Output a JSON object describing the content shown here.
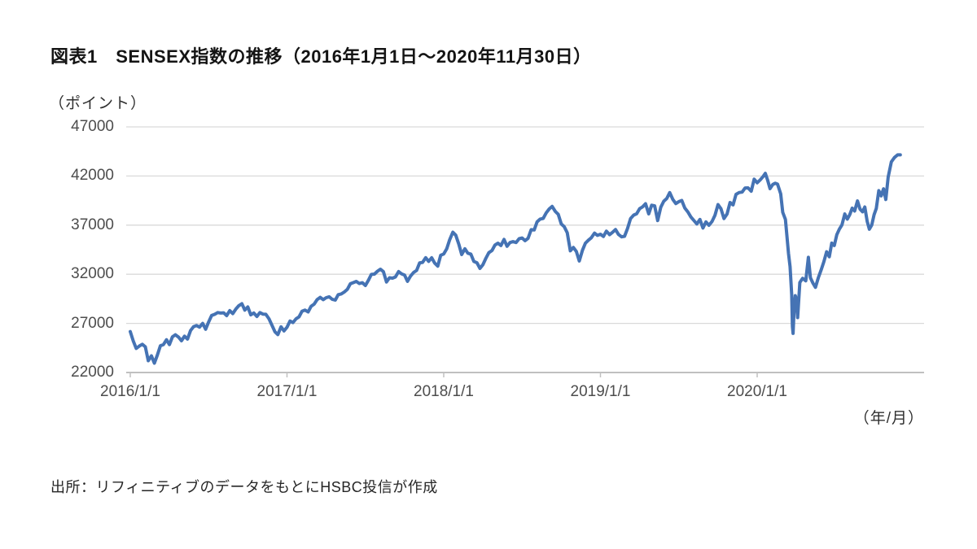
{
  "figure": {
    "title": "図表1　SENSEX指数の推移（2016年1月1日～2020年11月30日）",
    "y_unit_label": "（ポイント）",
    "x_unit_label": "（年/月）",
    "source": "出所：リフィニティブのデータをもとにHSBC投信が作成"
  },
  "colors": {
    "line": "#4573b4",
    "gridline": "#d9d9d9",
    "axis": "#c0c0c0",
    "tick_text": "#4d4d4d",
    "title_text": "#141414"
  },
  "chart_data": {
    "type": "line",
    "title": "SENSEX指数の推移（2016年1月1日～2020年11月30日）",
    "xlabel": "年/月",
    "ylabel": "ポイント",
    "ylim": [
      22000,
      47000
    ],
    "xlim_years": [
      2016.0,
      2020.915
    ],
    "grid": "horizontal",
    "legend": "none",
    "ytick_values": [
      47000,
      42000,
      37000,
      32000,
      27000,
      22000
    ],
    "ytick_labels": [
      "47000",
      "42000",
      "37000",
      "32000",
      "27000",
      "22000"
    ],
    "xtick_years": [
      2016,
      2017,
      2018,
      2019,
      2020
    ],
    "xtick_labels": [
      "2016/1/1",
      "2017/1/1",
      "2018/1/1",
      "2019/1/1",
      "2020/1/1"
    ],
    "series": [
      {
        "name": "SENSEX",
        "points": [
          [
            2016.0,
            26160
          ],
          [
            2016.019,
            25200
          ],
          [
            2016.038,
            24450
          ],
          [
            2016.058,
            24700
          ],
          [
            2016.077,
            24870
          ],
          [
            2016.096,
            24620
          ],
          [
            2016.115,
            23200
          ],
          [
            2016.135,
            23700
          ],
          [
            2016.154,
            22950
          ],
          [
            2016.173,
            23780
          ],
          [
            2016.192,
            24720
          ],
          [
            2016.212,
            24850
          ],
          [
            2016.231,
            25340
          ],
          [
            2016.25,
            24840
          ],
          [
            2016.269,
            25630
          ],
          [
            2016.288,
            25840
          ],
          [
            2016.308,
            25600
          ],
          [
            2016.327,
            25230
          ],
          [
            2016.346,
            25700
          ],
          [
            2016.365,
            25400
          ],
          [
            2016.385,
            26280
          ],
          [
            2016.404,
            26670
          ],
          [
            2016.423,
            26780
          ],
          [
            2016.442,
            26620
          ],
          [
            2016.462,
            27000
          ],
          [
            2016.481,
            26400
          ],
          [
            2016.5,
            27150
          ],
          [
            2016.519,
            27800
          ],
          [
            2016.538,
            27920
          ],
          [
            2016.558,
            28100
          ],
          [
            2016.577,
            28050
          ],
          [
            2016.596,
            28080
          ],
          [
            2016.615,
            27790
          ],
          [
            2016.635,
            28300
          ],
          [
            2016.654,
            27990
          ],
          [
            2016.673,
            28450
          ],
          [
            2016.692,
            28800
          ],
          [
            2016.712,
            29000
          ],
          [
            2016.731,
            28350
          ],
          [
            2016.75,
            28670
          ],
          [
            2016.769,
            27870
          ],
          [
            2016.788,
            28060
          ],
          [
            2016.808,
            27700
          ],
          [
            2016.827,
            28100
          ],
          [
            2016.846,
            27940
          ],
          [
            2016.865,
            27930
          ],
          [
            2016.885,
            27460
          ],
          [
            2016.904,
            26820
          ],
          [
            2016.923,
            26150
          ],
          [
            2016.942,
            25860
          ],
          [
            2016.962,
            26650
          ],
          [
            2016.981,
            26230
          ],
          [
            2017.0,
            26600
          ],
          [
            2017.019,
            27240
          ],
          [
            2017.038,
            27080
          ],
          [
            2017.058,
            27470
          ],
          [
            2017.077,
            27660
          ],
          [
            2017.096,
            28240
          ],
          [
            2017.115,
            28350
          ],
          [
            2017.135,
            28170
          ],
          [
            2017.154,
            28740
          ],
          [
            2017.173,
            28950
          ],
          [
            2017.192,
            29420
          ],
          [
            2017.212,
            29650
          ],
          [
            2017.231,
            29420
          ],
          [
            2017.25,
            29620
          ],
          [
            2017.269,
            29710
          ],
          [
            2017.288,
            29460
          ],
          [
            2017.308,
            29370
          ],
          [
            2017.327,
            29920
          ],
          [
            2017.346,
            30000
          ],
          [
            2017.365,
            30190
          ],
          [
            2017.385,
            30460
          ],
          [
            2017.404,
            31030
          ],
          [
            2017.423,
            31150
          ],
          [
            2017.442,
            31270
          ],
          [
            2017.462,
            31060
          ],
          [
            2017.481,
            31140
          ],
          [
            2017.5,
            30860
          ],
          [
            2017.519,
            31370
          ],
          [
            2017.538,
            31980
          ],
          [
            2017.558,
            32020
          ],
          [
            2017.577,
            32310
          ],
          [
            2017.596,
            32510
          ],
          [
            2017.615,
            32270
          ],
          [
            2017.635,
            31210
          ],
          [
            2017.654,
            31640
          ],
          [
            2017.673,
            31600
          ],
          [
            2017.692,
            31730
          ],
          [
            2017.712,
            32270
          ],
          [
            2017.731,
            32040
          ],
          [
            2017.75,
            31920
          ],
          [
            2017.769,
            31280
          ],
          [
            2017.788,
            31810
          ],
          [
            2017.808,
            32180
          ],
          [
            2017.827,
            32390
          ],
          [
            2017.846,
            33160
          ],
          [
            2017.865,
            33210
          ],
          [
            2017.885,
            33690
          ],
          [
            2017.904,
            33310
          ],
          [
            2017.923,
            33680
          ],
          [
            2017.942,
            33150
          ],
          [
            2017.962,
            32830
          ],
          [
            2017.981,
            33940
          ],
          [
            2018.0,
            34060
          ],
          [
            2018.019,
            34590
          ],
          [
            2018.038,
            35510
          ],
          [
            2018.058,
            36280
          ],
          [
            2018.077,
            35970
          ],
          [
            2018.096,
            35070
          ],
          [
            2018.115,
            34010
          ],
          [
            2018.135,
            34590
          ],
          [
            2018.154,
            34140
          ],
          [
            2018.173,
            34050
          ],
          [
            2018.192,
            33310
          ],
          [
            2018.212,
            33170
          ],
          [
            2018.231,
            32600
          ],
          [
            2018.25,
            32970
          ],
          [
            2018.269,
            33630
          ],
          [
            2018.288,
            34190
          ],
          [
            2018.308,
            34420
          ],
          [
            2018.327,
            34970
          ],
          [
            2018.346,
            35160
          ],
          [
            2018.365,
            34920
          ],
          [
            2018.385,
            35540
          ],
          [
            2018.404,
            34850
          ],
          [
            2018.423,
            35230
          ],
          [
            2018.442,
            35320
          ],
          [
            2018.462,
            35230
          ],
          [
            2018.481,
            35620
          ],
          [
            2018.5,
            35690
          ],
          [
            2018.519,
            35420
          ],
          [
            2018.538,
            35660
          ],
          [
            2018.558,
            36540
          ],
          [
            2018.577,
            36500
          ],
          [
            2018.596,
            37340
          ],
          [
            2018.615,
            37610
          ],
          [
            2018.635,
            37690
          ],
          [
            2018.654,
            38250
          ],
          [
            2018.673,
            38650
          ],
          [
            2018.692,
            38900
          ],
          [
            2018.712,
            38390
          ],
          [
            2018.731,
            38090
          ],
          [
            2018.75,
            37120
          ],
          [
            2018.769,
            36840
          ],
          [
            2018.788,
            36230
          ],
          [
            2018.808,
            34380
          ],
          [
            2018.827,
            34730
          ],
          [
            2018.846,
            34320
          ],
          [
            2018.865,
            33350
          ],
          [
            2018.885,
            34440
          ],
          [
            2018.904,
            35160
          ],
          [
            2018.923,
            35470
          ],
          [
            2018.942,
            35720
          ],
          [
            2018.962,
            36190
          ],
          [
            2018.981,
            35960
          ],
          [
            2019.0,
            36070
          ],
          [
            2019.019,
            35850
          ],
          [
            2019.038,
            36390
          ],
          [
            2019.058,
            36030
          ],
          [
            2019.077,
            36260
          ],
          [
            2019.096,
            36550
          ],
          [
            2019.115,
            36060
          ],
          [
            2019.135,
            35810
          ],
          [
            2019.154,
            35870
          ],
          [
            2019.173,
            36670
          ],
          [
            2019.192,
            37670
          ],
          [
            2019.212,
            38020
          ],
          [
            2019.231,
            38160
          ],
          [
            2019.25,
            38670
          ],
          [
            2019.269,
            38860
          ],
          [
            2019.288,
            39180
          ],
          [
            2019.308,
            38140
          ],
          [
            2019.327,
            39030
          ],
          [
            2019.346,
            38960
          ],
          [
            2019.365,
            37460
          ],
          [
            2019.385,
            38820
          ],
          [
            2019.404,
            39430
          ],
          [
            2019.423,
            39710
          ],
          [
            2019.442,
            40310
          ],
          [
            2019.462,
            39620
          ],
          [
            2019.481,
            39190
          ],
          [
            2019.5,
            39390
          ],
          [
            2019.519,
            39510
          ],
          [
            2019.538,
            38740
          ],
          [
            2019.558,
            38340
          ],
          [
            2019.577,
            37830
          ],
          [
            2019.596,
            37480
          ],
          [
            2019.615,
            37120
          ],
          [
            2019.635,
            37580
          ],
          [
            2019.654,
            36700
          ],
          [
            2019.673,
            37330
          ],
          [
            2019.692,
            36980
          ],
          [
            2019.712,
            37380
          ],
          [
            2019.731,
            38010
          ],
          [
            2019.75,
            39090
          ],
          [
            2019.769,
            38670
          ],
          [
            2019.788,
            37670
          ],
          [
            2019.808,
            38130
          ],
          [
            2019.827,
            39300
          ],
          [
            2019.846,
            39060
          ],
          [
            2019.865,
            40130
          ],
          [
            2019.885,
            40320
          ],
          [
            2019.904,
            40360
          ],
          [
            2019.923,
            40780
          ],
          [
            2019.942,
            40790
          ],
          [
            2019.962,
            40450
          ],
          [
            2019.981,
            41680
          ],
          [
            2020.0,
            41310
          ],
          [
            2020.019,
            41600
          ],
          [
            2020.038,
            41950
          ],
          [
            2020.052,
            42270
          ],
          [
            2020.066,
            41610
          ],
          [
            2020.082,
            40720
          ],
          [
            2020.1,
            41140
          ],
          [
            2020.115,
            41260
          ],
          [
            2020.13,
            41170
          ],
          [
            2020.15,
            40180
          ],
          [
            2020.163,
            38300
          ],
          [
            2020.18,
            37580
          ],
          [
            2020.2,
            34100
          ],
          [
            2020.21,
            32780
          ],
          [
            2020.22,
            29920
          ],
          [
            2020.225,
            26670
          ],
          [
            2020.229,
            25980
          ],
          [
            2020.236,
            28540
          ],
          [
            2020.243,
            29820
          ],
          [
            2020.25,
            29470
          ],
          [
            2020.258,
            27590
          ],
          [
            2020.272,
            31160
          ],
          [
            2020.29,
            31590
          ],
          [
            2020.31,
            31330
          ],
          [
            2020.327,
            33720
          ],
          [
            2020.34,
            31640
          ],
          [
            2020.356,
            31100
          ],
          [
            2020.372,
            30670
          ],
          [
            2020.39,
            31640
          ],
          [
            2020.408,
            32420
          ],
          [
            2020.426,
            33300
          ],
          [
            2020.443,
            34290
          ],
          [
            2020.46,
            33780
          ],
          [
            2020.476,
            35170
          ],
          [
            2020.492,
            34920
          ],
          [
            2020.508,
            36020
          ],
          [
            2020.524,
            36590
          ],
          [
            2020.541,
            37020
          ],
          [
            2020.559,
            38130
          ],
          [
            2020.575,
            37610
          ],
          [
            2020.59,
            38040
          ],
          [
            2020.606,
            38730
          ],
          [
            2020.622,
            38430
          ],
          [
            2020.64,
            39470
          ],
          [
            2020.656,
            38630
          ],
          [
            2020.672,
            38360
          ],
          [
            2020.687,
            38850
          ],
          [
            2020.702,
            37390
          ],
          [
            2020.716,
            36590
          ],
          [
            2020.731,
            37000
          ],
          [
            2020.746,
            38070
          ],
          [
            2020.76,
            38700
          ],
          [
            2020.776,
            40510
          ],
          [
            2020.791,
            39980
          ],
          [
            2020.806,
            40690
          ],
          [
            2020.821,
            39610
          ],
          [
            2020.836,
            41890
          ],
          [
            2020.856,
            43440
          ],
          [
            2020.876,
            43880
          ],
          [
            2020.896,
            44150
          ],
          [
            2020.913,
            44149
          ]
        ]
      }
    ]
  }
}
